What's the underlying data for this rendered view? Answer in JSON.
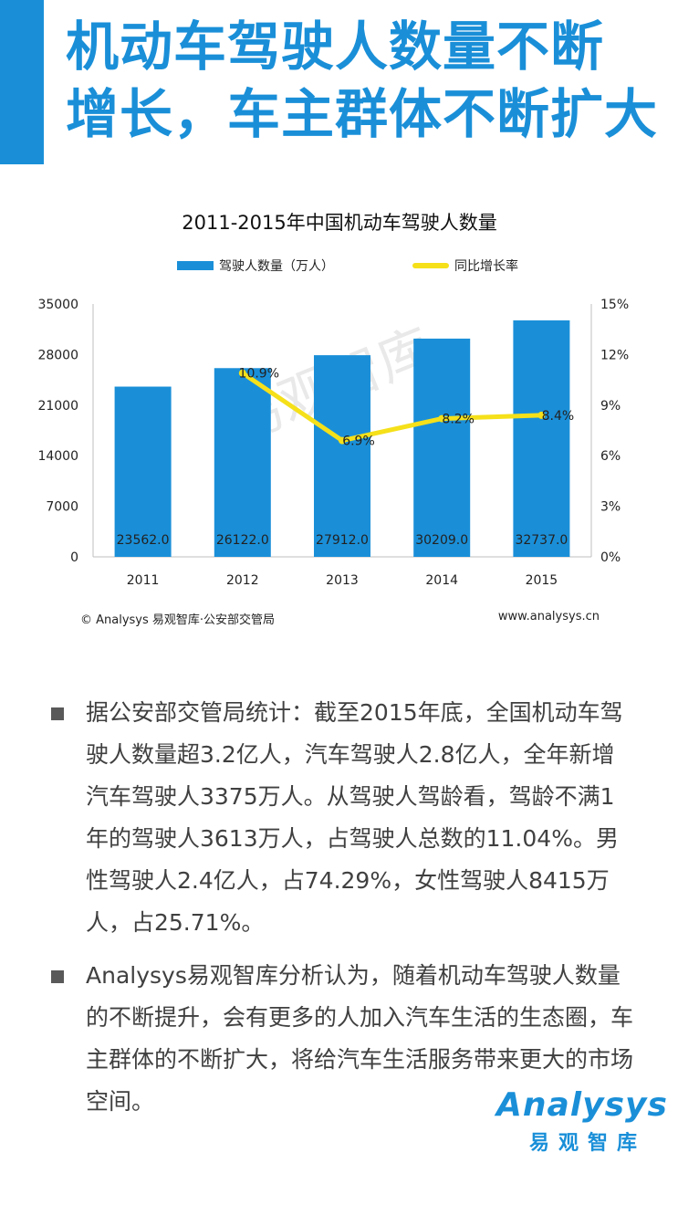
{
  "header": {
    "title_line1": "机动车驾驶人数量不断",
    "title_line2": "增长，车主群体不断扩大"
  },
  "chart_data": {
    "type": "bar",
    "title": "2011-2015年中国机动车驾驶人数量",
    "categories": [
      "2011",
      "2012",
      "2013",
      "2014",
      "2015"
    ],
    "series": [
      {
        "name": "驾驶人数量（万人）",
        "kind": "bar",
        "axis": "left",
        "values": [
          23562.0,
          26122.0,
          27912.0,
          30209.0,
          32737.0
        ],
        "labels": [
          "23562.0",
          "26122.0",
          "27912.0",
          "30209.0",
          "32737.0"
        ]
      },
      {
        "name": "同比增长率",
        "kind": "line",
        "axis": "right",
        "values": [
          null,
          10.9,
          6.9,
          8.2,
          8.4
        ],
        "labels": [
          "",
          "10.9%",
          "6.9%",
          "8.2%",
          "8.4%"
        ]
      }
    ],
    "y_left": {
      "min": 0,
      "max": 35000,
      "ticks": [
        "0",
        "7000",
        "14000",
        "21000",
        "28000",
        "35000"
      ]
    },
    "y_right": {
      "min": 0,
      "max": 15,
      "ticks": [
        "0%",
        "3%",
        "6%",
        "9%",
        "12%",
        "15%"
      ]
    },
    "legend_position": "top",
    "colors": {
      "bar": "#1a8fd8",
      "line": "#f5e01a"
    },
    "watermark": "易观智库"
  },
  "footer": {
    "source": "© Analysys 易观智库·公安部交管局",
    "website": "www.analysys.cn"
  },
  "bullets": [
    "据公安部交管局统计：截至2015年底，全国机动车驾驶人数量超3.2亿人，汽车驾驶人2.8亿人，全年新增汽车驾驶人3375万人。从驾驶人驾龄看，驾龄不满1年的驾驶人3613万人，占驾驶人总数的11.04%。男性驾驶人2.4亿人，占74.29%，女性驾驶人8415万人，占25.71%。",
    "Analysys易观智库分析认为，随着机动车驾驶人数量的不断提升，会有更多的人加入汽车生活的生态圈，车主群体的不断扩大，将给汽车生活服务带来更大的市场空间。"
  ],
  "logo": {
    "wordmark": "Analysys",
    "subtitle": "易观智库"
  },
  "theme": {
    "accent": "#1a8fd8",
    "highlight": "#f5e01a"
  }
}
